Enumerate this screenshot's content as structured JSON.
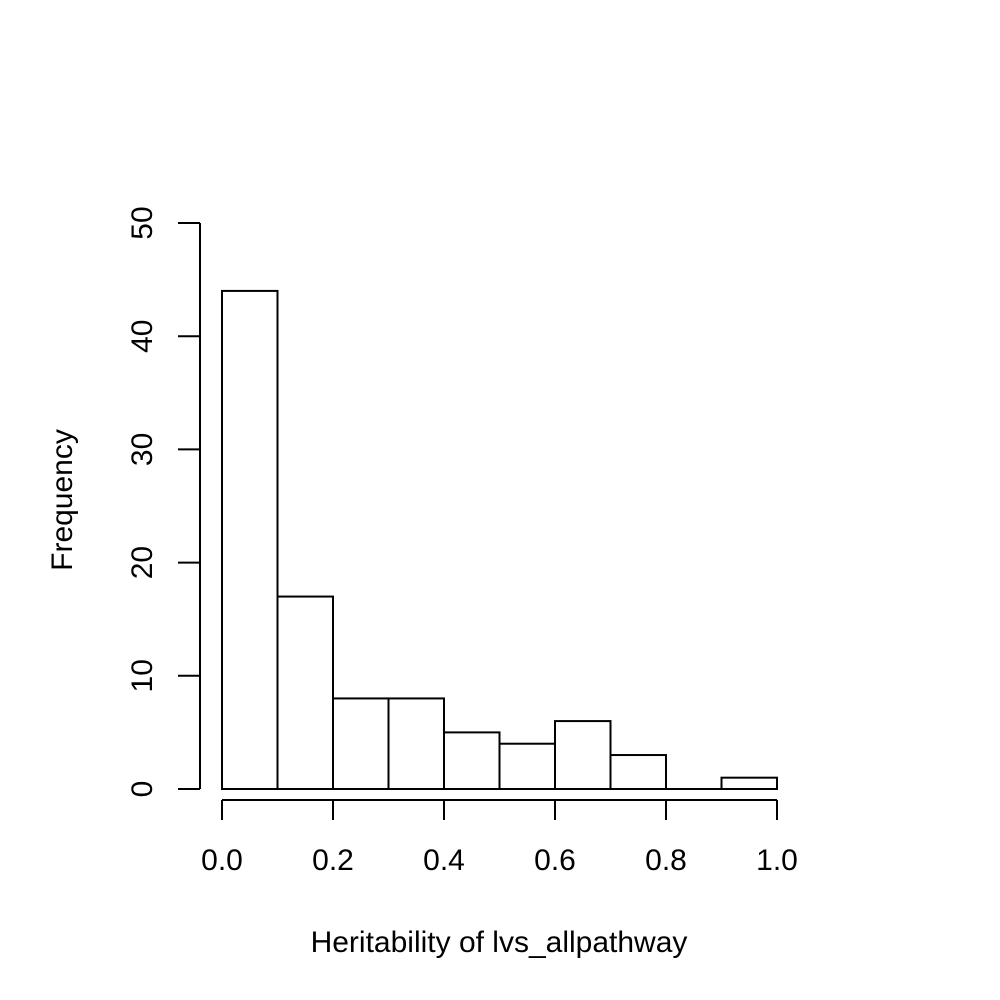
{
  "chart_data": {
    "type": "bar",
    "title": "",
    "xlabel": "Heritability of lvs_allpathway",
    "ylabel": "Frequency",
    "bins": [
      {
        "x0": 0.0,
        "x1": 0.1,
        "count": 44
      },
      {
        "x0": 0.1,
        "x1": 0.2,
        "count": 17
      },
      {
        "x0": 0.2,
        "x1": 0.3,
        "count": 8
      },
      {
        "x0": 0.3,
        "x1": 0.4,
        "count": 8
      },
      {
        "x0": 0.4,
        "x1": 0.5,
        "count": 5
      },
      {
        "x0": 0.5,
        "x1": 0.6,
        "count": 4
      },
      {
        "x0": 0.6,
        "x1": 0.7,
        "count": 6
      },
      {
        "x0": 0.7,
        "x1": 0.8,
        "count": 3
      },
      {
        "x0": 0.8,
        "x1": 0.9,
        "count": 0
      },
      {
        "x0": 0.9,
        "x1": 1.0,
        "count": 1
      }
    ],
    "xlim": [
      0,
      1
    ],
    "ylim": [
      0,
      50
    ],
    "x_ticks": [
      "0.0",
      "0.2",
      "0.4",
      "0.6",
      "0.8",
      "1.0"
    ],
    "y_ticks": [
      "0",
      "10",
      "20",
      "30",
      "40",
      "50"
    ],
    "grid": false,
    "legend": "none"
  }
}
